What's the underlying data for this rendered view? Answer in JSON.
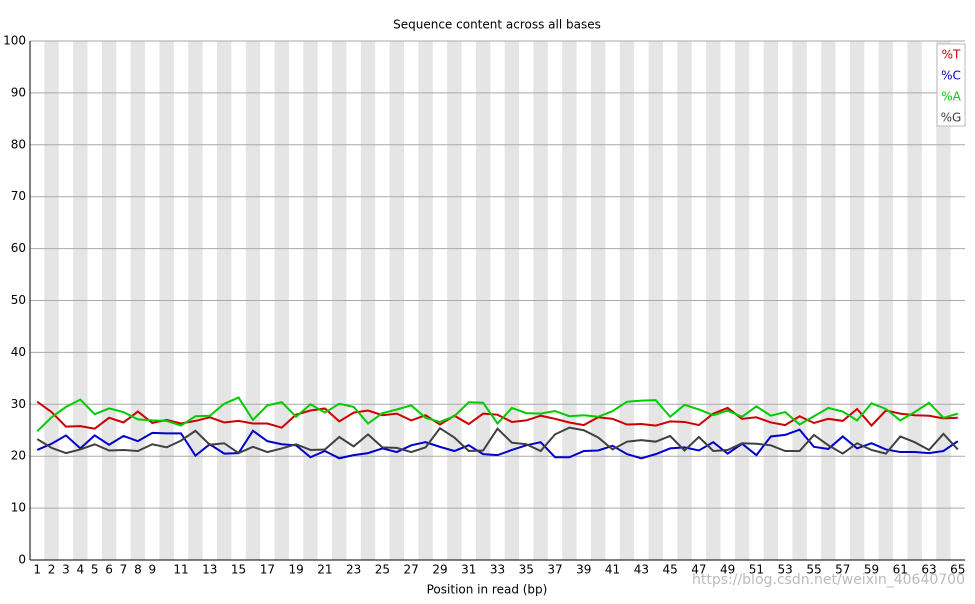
{
  "chart_data": {
    "type": "line",
    "title": "Sequence content across all bases",
    "x_label": "Position in read (bp)",
    "watermark": "https://blog.csdn.net/weixin_40640700",
    "categories": [
      1,
      2,
      3,
      4,
      5,
      6,
      7,
      8,
      9,
      null,
      11,
      null,
      13,
      null,
      15,
      null,
      17,
      null,
      19,
      null,
      21,
      null,
      23,
      null,
      25,
      null,
      27,
      null,
      29,
      null,
      31,
      null,
      33,
      null,
      35,
      null,
      37,
      null,
      39,
      null,
      41,
      null,
      43,
      null,
      45,
      null,
      47,
      null,
      49,
      null,
      51,
      null,
      53,
      null,
      55,
      null,
      57,
      null,
      59,
      null,
      61,
      null,
      63,
      null,
      65
    ],
    "series": [
      {
        "name": "%T",
        "color": "#cc0000",
        "values": [
          30.5,
          28.5,
          25.7,
          25.8,
          25.3,
          27.4,
          26.5,
          28.6,
          26.4,
          27,
          26.3,
          26.8,
          27.5,
          26.5,
          26.8,
          26.3,
          26.3,
          25.5,
          28,
          28.8,
          29.2,
          26.7,
          28.4,
          28.8,
          27.9,
          28.2,
          26.9,
          27.9,
          26.1,
          27.8,
          26.2,
          28.2,
          28,
          26.6,
          26.9,
          27.8,
          27.2,
          26.5,
          26,
          27.5,
          27.2,
          26.1,
          26.2,
          25.9,
          26.7,
          26.6,
          26,
          28.2,
          29.3,
          27.2,
          27.5,
          26.5,
          26,
          27.7,
          26.4,
          27.2,
          26.8,
          29.1,
          25.9,
          28.8,
          28.2,
          27.9,
          27.8,
          27.3,
          27.4
        ]
      },
      {
        "name": "%C",
        "color": "#0000cc",
        "values": [
          21.2,
          22.4,
          24,
          21.5,
          24,
          22.2,
          23.9,
          22.9,
          24.5,
          24.4,
          24.4,
          20.1,
          22.3,
          20.5,
          20.6,
          24.9,
          22.9,
          22.3,
          22.1,
          19.8,
          21,
          19.6,
          20.2,
          20.6,
          21.5,
          20.8,
          22.1,
          22.7,
          21.8,
          21,
          22.1,
          20.4,
          20.2,
          21.2,
          22.1,
          22.7,
          19.8,
          19.8,
          21,
          21.1,
          22,
          20.4,
          19.6,
          20.4,
          21.5,
          21.7,
          21.1,
          22.7,
          20.5,
          22.4,
          20.2,
          23.8,
          24.1,
          25.1,
          21.8,
          21.4,
          23.8,
          21.5,
          22.5,
          21.3,
          20.8,
          20.8,
          20.6,
          21,
          22.9
        ]
      },
      {
        "name": "%A",
        "color": "#00cc00",
        "values": [
          24.8,
          27.5,
          29.5,
          30.9,
          28.1,
          29.2,
          28.5,
          27.1,
          26.9,
          26.8,
          25.9,
          27.7,
          27.8,
          30.1,
          31.3,
          27,
          29.8,
          30.4,
          27.6,
          30,
          28.4,
          30.1,
          29.5,
          26.3,
          28.3,
          29,
          29.8,
          27.4,
          26.6,
          27.7,
          30.4,
          30.3,
          26.3,
          29.3,
          28.3,
          28.2,
          28.7,
          27.7,
          27.9,
          27.6,
          28.7,
          30.5,
          30.7,
          30.8,
          27.6,
          29.9,
          29,
          27.9,
          28.8,
          27.6,
          29.6,
          27.8,
          28.5,
          26.1,
          27.7,
          29.3,
          28.6,
          26.9,
          30.2,
          29.1,
          26.9,
          28.5,
          30.3,
          27.4,
          28.2
        ]
      },
      {
        "name": "%G",
        "color": "#404040",
        "values": [
          23.3,
          21.6,
          20.6,
          21.3,
          22.3,
          21.1,
          21.2,
          21,
          22.3,
          21.7,
          23,
          24.9,
          22.2,
          22.5,
          20.6,
          21.8,
          20.8,
          21.5,
          22.3,
          21.2,
          21.3,
          23.7,
          21.9,
          24.2,
          21.7,
          21.6,
          20.8,
          21.7,
          25.4,
          23.6,
          21,
          21.1,
          25.3,
          22.6,
          22.3,
          21,
          24.2,
          25.5,
          25,
          23.6,
          21.3,
          22.8,
          23.1,
          22.8,
          23.9,
          21.1,
          23.7,
          21,
          21.2,
          22.5,
          22.4,
          22.1,
          21,
          21,
          24.1,
          22.1,
          20.5,
          22.5,
          21.2,
          20.5,
          23.8,
          22.7,
          21.2,
          24.3,
          21.3
        ]
      }
    ],
    "ylim": [
      0,
      100
    ],
    "yticks": [
      0,
      10,
      20,
      30,
      40,
      50,
      60,
      70,
      80,
      90,
      100
    ],
    "grid": true,
    "legend": "top-right"
  }
}
